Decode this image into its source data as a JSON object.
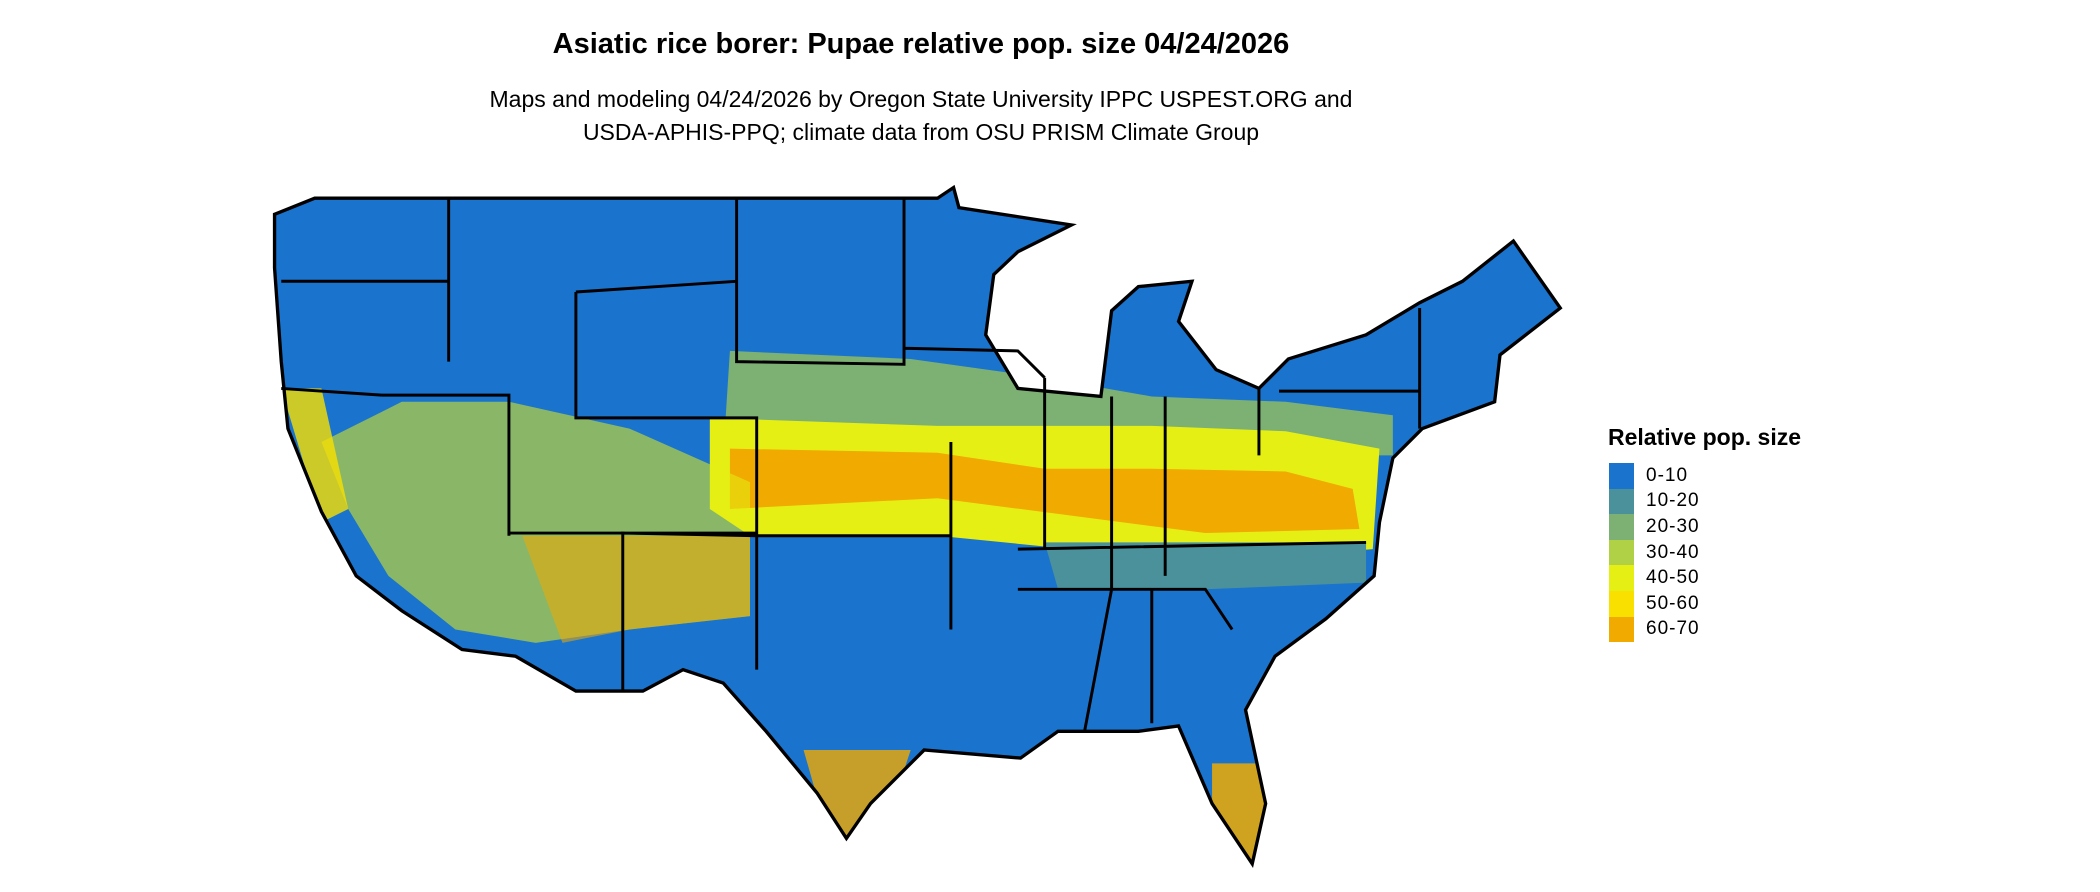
{
  "header": {
    "title": "Asiatic rice borer: Pupae relative pop. size 04/24/2026",
    "subtitle_line1": "Maps and modeling 04/24/2026 by Oregon State University IPPC USPEST.ORG and",
    "subtitle_line2": "USDA-APHIS-PPQ; climate data from OSU PRISM Climate Group"
  },
  "legend": {
    "title": "Relative pop. size",
    "items": [
      {
        "label": "0-10",
        "color": "#1a73cd"
      },
      {
        "label": "10-20",
        "color": "#4a919c"
      },
      {
        "label": "20-30",
        "color": "#7db073"
      },
      {
        "label": "30-40",
        "color": "#b0d046"
      },
      {
        "label": "40-50",
        "color": "#e6ef14"
      },
      {
        "label": "50-60",
        "color": "#f9e000"
      },
      {
        "label": "60-70",
        "color": "#f0aa00"
      }
    ]
  }
}
